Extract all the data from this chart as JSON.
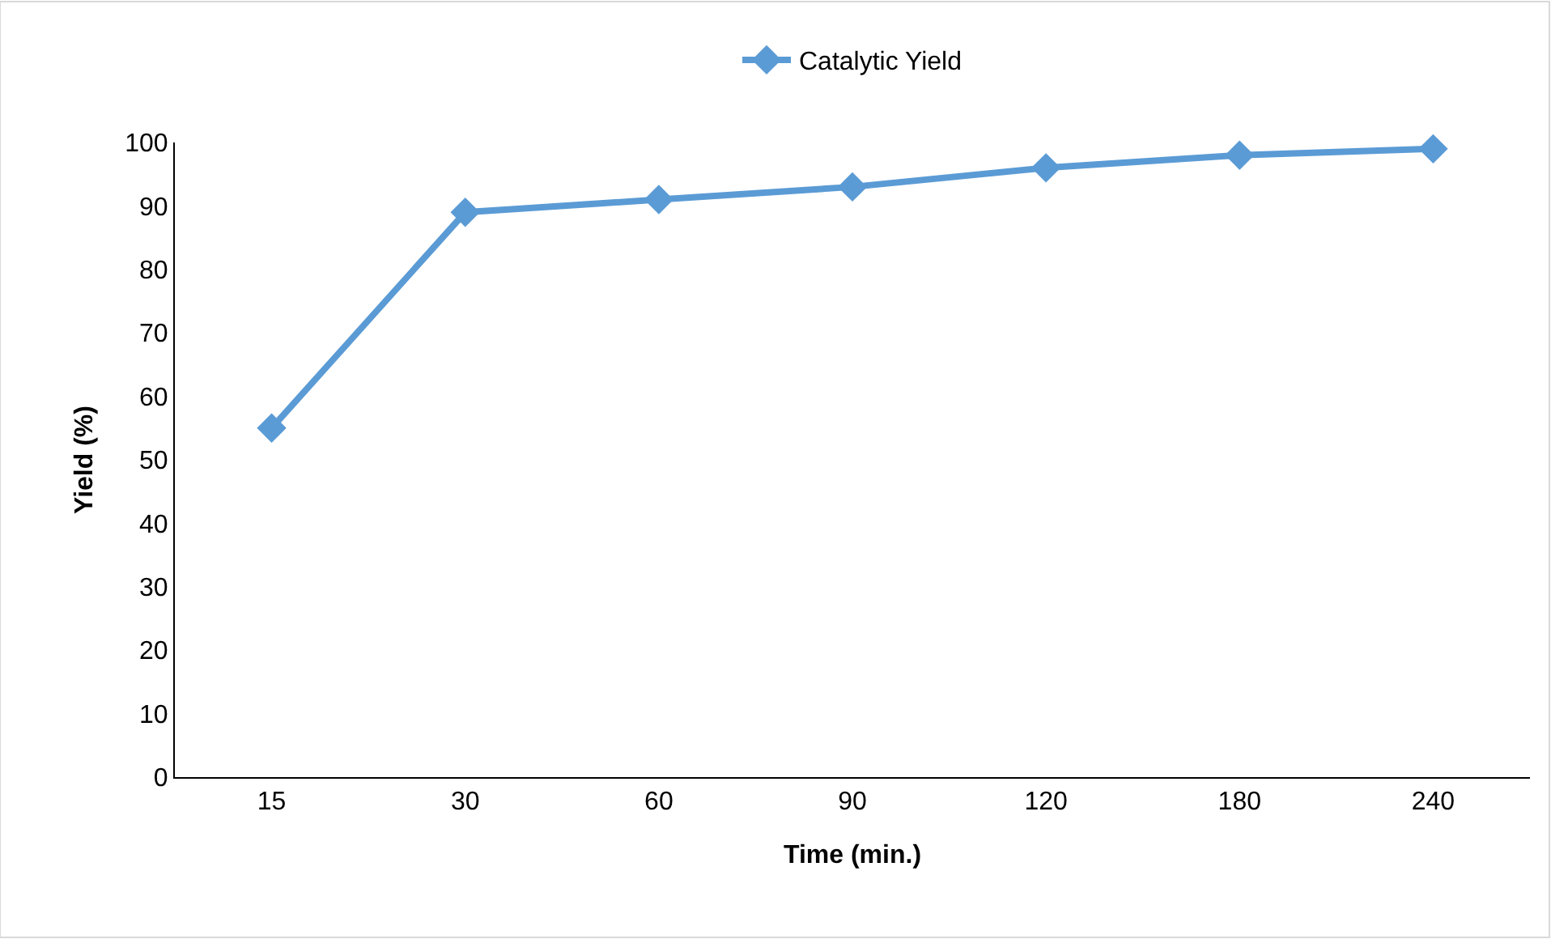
{
  "chart_data": {
    "type": "line",
    "xlabel": "Time (min.)",
    "ylabel": "Yield (%)",
    "categories": [
      "15",
      "30",
      "60",
      "90",
      "120",
      "180",
      "240"
    ],
    "series": [
      {
        "name": "Catalytic Yield",
        "color": "#5b9bd5",
        "values": [
          55,
          89,
          91,
          93,
          96,
          98,
          99
        ]
      }
    ],
    "ylim": [
      0,
      100
    ],
    "yticks": [
      0,
      10,
      20,
      30,
      40,
      50,
      60,
      70,
      80,
      90,
      100
    ],
    "legend": "top",
    "marker": "diamond",
    "line_style": "solid"
  }
}
